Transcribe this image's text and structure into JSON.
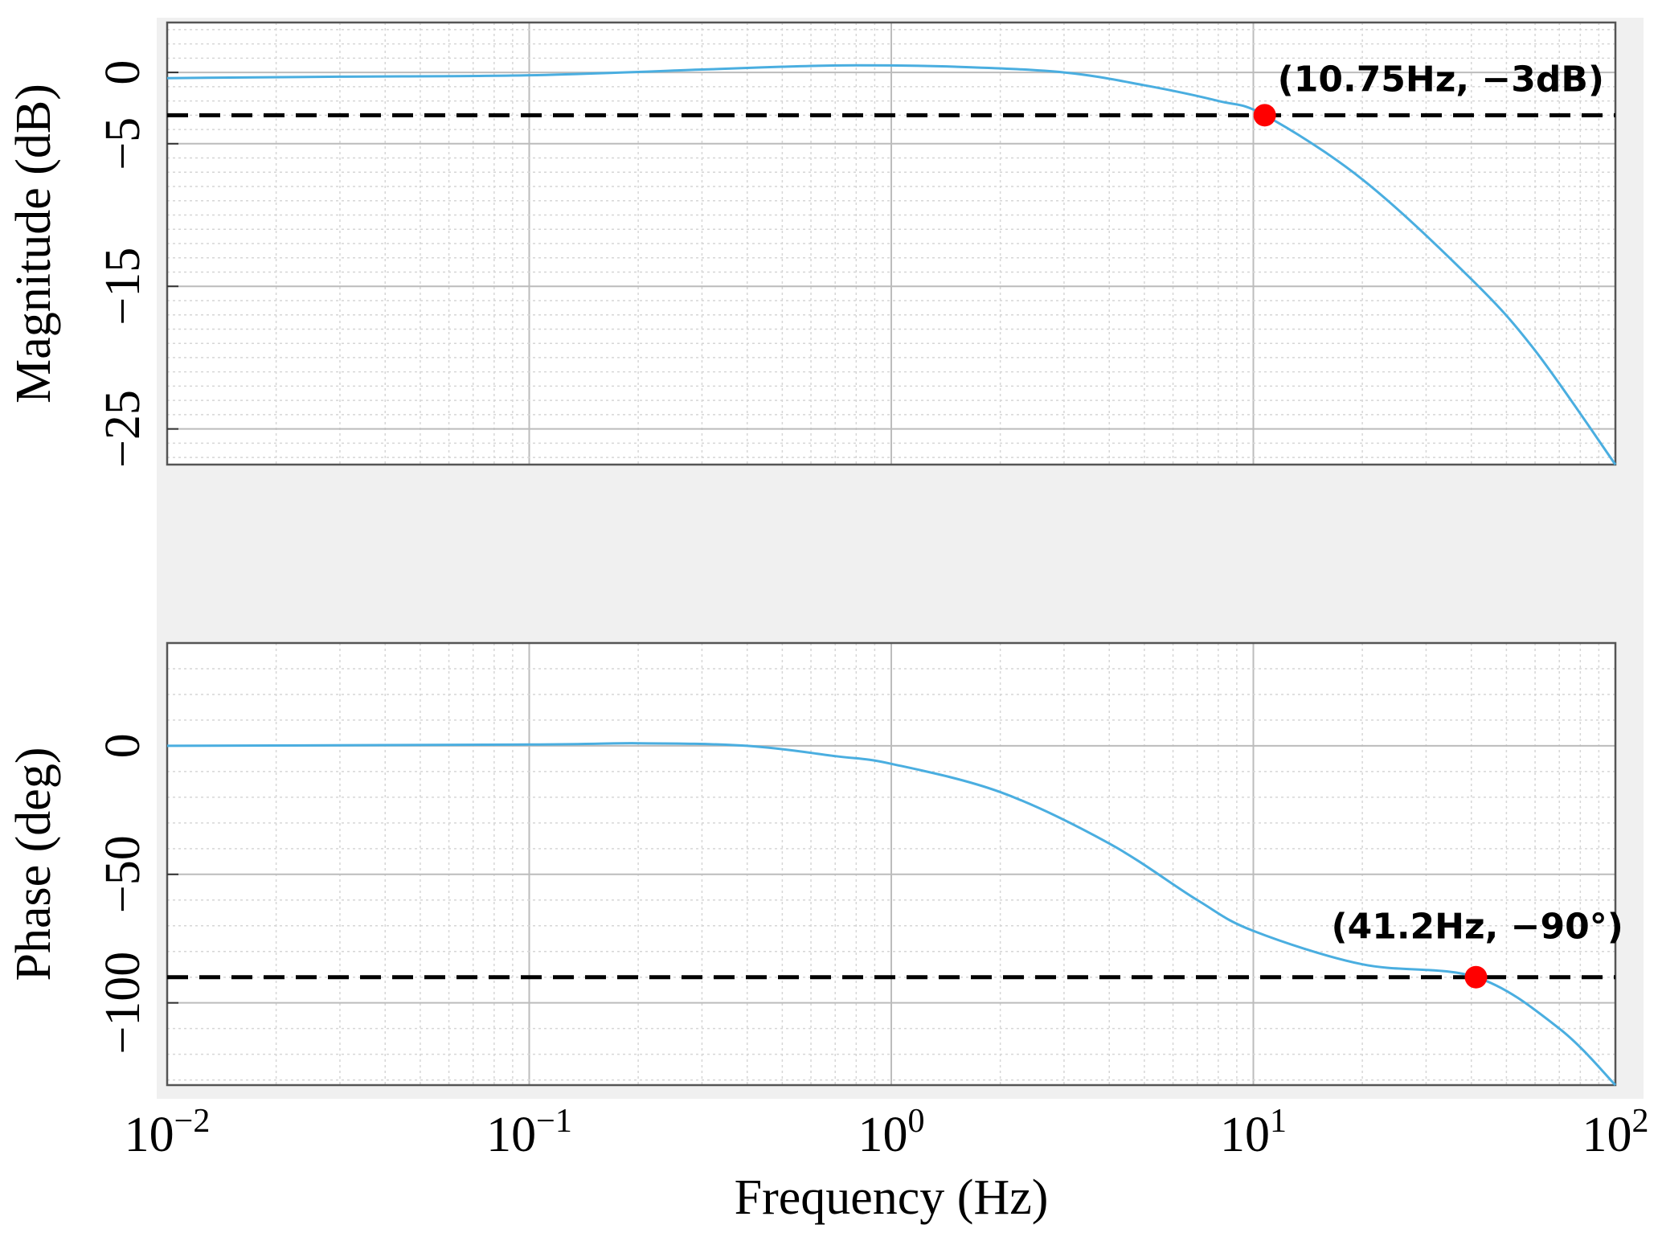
{
  "colors": {
    "curve": "#4aaee0",
    "marker": "#ff0000",
    "reference_line": "#000000",
    "panel_background": "#f0f0f0",
    "plot_background": "#ffffff",
    "grid": "#bcbcbc"
  },
  "chart_data": [
    {
      "type": "line",
      "panel": "magnitude",
      "ylabel": "Magnitude (dB)",
      "xlabel": "",
      "xscale": "log",
      "xlim": [
        0.01,
        100
      ],
      "ylim": [
        -27.5,
        3.5
      ],
      "yticks": [
        0,
        -5,
        -15,
        -25
      ],
      "ytick_labels": [
        "0",
        "−5",
        "−15",
        "−25"
      ],
      "grid": true,
      "x": [
        0.01,
        0.03,
        0.1,
        0.3,
        0.5,
        0.8,
        1.5,
        3,
        5,
        8,
        10.75,
        20,
        40,
        60,
        100
      ],
      "y": [
        -0.4,
        -0.3,
        -0.2,
        0.2,
        0.4,
        0.5,
        0.4,
        0.0,
        -0.9,
        -2.0,
        -3.0,
        -7.5,
        -14.5,
        -19.5,
        -27.5
      ],
      "reference_line": {
        "y": -3,
        "style": "dashed"
      },
      "marker": {
        "x": 10.75,
        "y": -3
      },
      "annotation": "(10.75Hz, −3dB)"
    },
    {
      "type": "line",
      "panel": "phase",
      "ylabel": "Phase (deg)",
      "xlabel": "Frequency (Hz)",
      "xscale": "log",
      "xlim": [
        0.01,
        100
      ],
      "ylim": [
        -132,
        40
      ],
      "yticks": [
        0,
        -50,
        -100
      ],
      "ytick_labels": [
        "0",
        "−50",
        "−100"
      ],
      "xticks": [
        0.01,
        0.1,
        1,
        10,
        100
      ],
      "xtick_labels": [
        {
          "base": "10",
          "exp": "−2"
        },
        {
          "base": "10",
          "exp": "−1"
        },
        {
          "base": "10",
          "exp": "0"
        },
        {
          "base": "10",
          "exp": "1"
        },
        {
          "base": "10",
          "exp": "2"
        }
      ],
      "grid": true,
      "x": [
        0.01,
        0.1,
        0.2,
        0.4,
        0.7,
        1,
        2,
        4,
        7,
        10,
        20,
        41.2,
        70,
        100
      ],
      "y": [
        0,
        0.5,
        1,
        0,
        -4,
        -7,
        -18,
        -38,
        -60,
        -72,
        -85,
        -90,
        -110,
        -132
      ],
      "reference_line": {
        "y": -90,
        "style": "dashed"
      },
      "marker": {
        "x": 41.2,
        "y": -90
      },
      "annotation": "(41.2Hz, −90°)"
    }
  ]
}
